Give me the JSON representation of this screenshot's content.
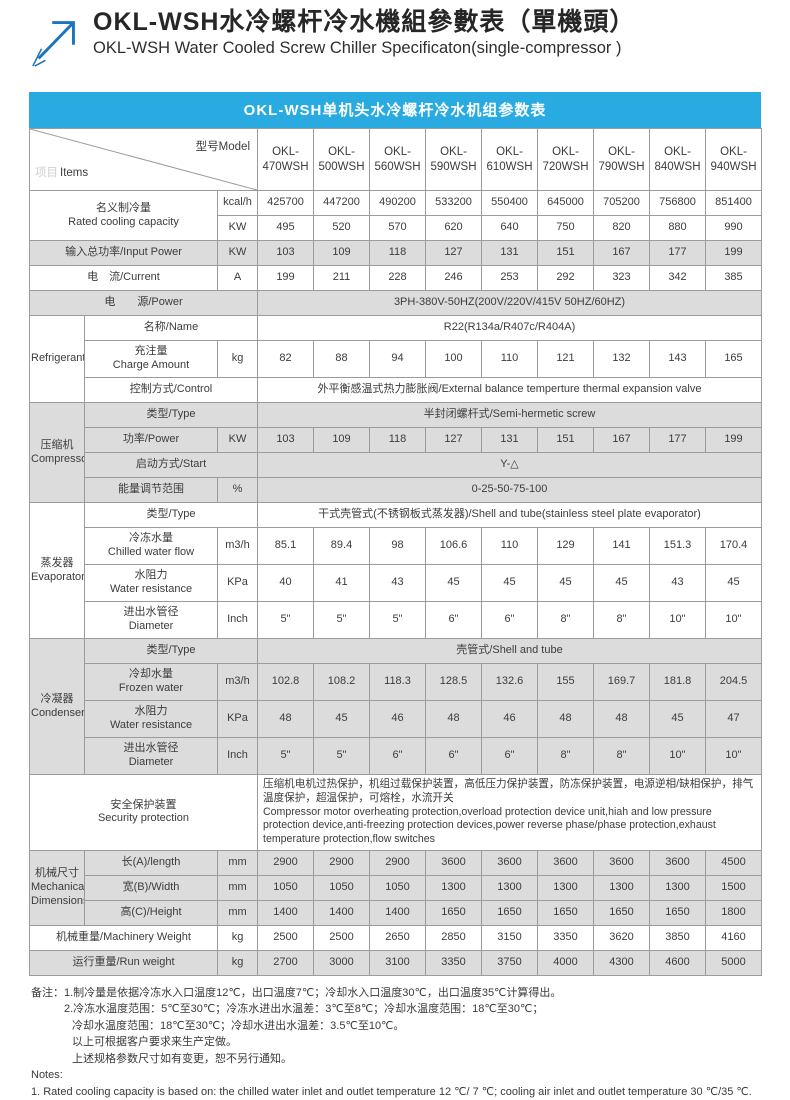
{
  "header": {
    "title_zh": "OKL-WSH水冷螺杆冷水機組參數表（單機頭）",
    "title_en": "OKL-WSH Water Cooled Screw Chiller Specificaton(single-compressor )",
    "accent_color": "#1c75bc"
  },
  "banner": {
    "text": "OKL-WSH单机头水冷螺杆冷水机组参数表",
    "bg_color": "#29abe2"
  },
  "colors": {
    "row_shade": "#dcdcdc",
    "border": "#9b9b9b"
  },
  "table": {
    "corner": {
      "items_zh": "项目",
      "items_en": "Items",
      "model_label": "型号Model"
    },
    "models": [
      "OKL-\n470WSH",
      "OKL-\n500WSH",
      "OKL-\n560WSH",
      "OKL-\n590WSH",
      "OKL-\n610WSH",
      "OKL-\n720WSH",
      "OKL-\n790WSH",
      "OKL-\n840WSH",
      "OKL-\n940WSH"
    ],
    "rows": [
      {
        "id": "cooling-kcal",
        "label": "名义制冷量\nRated cooling capacity",
        "labelCols": 2,
        "labelRows": 2,
        "unit": "kcal/h",
        "values": [
          "425700",
          "447200",
          "490200",
          "533200",
          "550400",
          "645000",
          "705200",
          "756800",
          "851400"
        ],
        "shade": false
      },
      {
        "id": "cooling-kw",
        "labelSkip": true,
        "unit": "KW",
        "values": [
          "495",
          "520",
          "570",
          "620",
          "640",
          "750",
          "820",
          "880",
          "990"
        ],
        "shade": false
      },
      {
        "id": "input-power",
        "label": "输入总功率/Input Power",
        "labelCols": 2,
        "unit": "KW",
        "values": [
          "103",
          "109",
          "118",
          "127",
          "131",
          "151",
          "167",
          "177",
          "199"
        ],
        "shade": true
      },
      {
        "id": "current",
        "label": "电　流/Current",
        "labelCols": 2,
        "unit": "A",
        "values": [
          "199",
          "211",
          "228",
          "246",
          "253",
          "292",
          "323",
          "342",
          "385"
        ],
        "shade": false
      },
      {
        "id": "power-source",
        "label": "电　　源/Power",
        "labelCols": 3,
        "merged": "3PH-380V-50HZ(200V/220V/415V 50HZ/60HZ)",
        "shade": true
      },
      {
        "id": "refrigerant-name",
        "group": "Refrigerant",
        "groupRows": 3,
        "label": "名称/Name",
        "labelCols": 2,
        "merged": "R22(R134a/R407c/R404A)",
        "shade": false
      },
      {
        "id": "refrigerant-charge",
        "label": "充注量\nCharge Amount",
        "unit": "kg",
        "values": [
          "82",
          "88",
          "94",
          "100",
          "110",
          "121",
          "132",
          "143",
          "165"
        ],
        "shade": false,
        "tall": true
      },
      {
        "id": "refrigerant-control",
        "label": "控制方式/Control",
        "labelCols": 2,
        "merged": "外平衡感温式热力膨胀阀/External balance temperture thermal expansion valve",
        "shade": false
      },
      {
        "id": "compressor-type",
        "group": "压缩机\nCompressor",
        "groupRows": 4,
        "label": "类型/Type",
        "labelCols": 2,
        "merged": "半封闭螺杆式/Semi-hermetic screw",
        "shade": true
      },
      {
        "id": "compressor-power",
        "label": "功率/Power",
        "unit": "KW",
        "values": [
          "103",
          "109",
          "118",
          "127",
          "131",
          "151",
          "167",
          "177",
          "199"
        ],
        "shade": true
      },
      {
        "id": "compressor-start",
        "label": "启动方式/Start",
        "labelCols": 2,
        "merged": "Y-△",
        "shade": true
      },
      {
        "id": "compressor-range",
        "label": "能量调节范围",
        "unit": "%",
        "merged": "0-25-50-75-100",
        "shade": true
      },
      {
        "id": "evaporator-type",
        "group": "蒸发器\nEvaporator",
        "groupRows": 4,
        "label": "类型/Type",
        "labelCols": 2,
        "merged": "干式壳管式(不锈钢板式蒸发器)/Shell and tube(stainless steel plate evaporator)",
        "shade": false
      },
      {
        "id": "evaporator-flow",
        "label": "冷冻水量\nChilled water flow",
        "unit": "m3/h",
        "values": [
          "85.1",
          "89.4",
          "98",
          "106.6",
          "110",
          "129",
          "141",
          "151.3",
          "170.4"
        ],
        "shade": false,
        "tall": true
      },
      {
        "id": "evaporator-resistance",
        "label": "水阻力\nWater resistance",
        "unit": "KPa",
        "values": [
          "40",
          "41",
          "43",
          "45",
          "45",
          "45",
          "45",
          "43",
          "45"
        ],
        "shade": false,
        "tall": true
      },
      {
        "id": "evaporator-diameter",
        "label": "进出水管径\nDiameter",
        "unit": "Inch",
        "values": [
          "5\"",
          "5\"",
          "5\"",
          "6\"",
          "6\"",
          "8\"",
          "8\"",
          "10\"",
          "10\""
        ],
        "shade": false,
        "tall": true
      },
      {
        "id": "condenser-type",
        "group": "冷凝器\nCondenser",
        "groupRows": 4,
        "label": "类型/Type",
        "labelCols": 2,
        "merged": "壳管式/Shell and tube",
        "shade": true
      },
      {
        "id": "condenser-flow",
        "label": "冷却水量\nFrozen water",
        "unit": "m3/h",
        "values": [
          "102.8",
          "108.2",
          "118.3",
          "128.5",
          "132.6",
          "155",
          "169.7",
          "181.8",
          "204.5"
        ],
        "shade": true,
        "tall": true
      },
      {
        "id": "condenser-resistance",
        "label": "水阻力\nWater resistance",
        "unit": "KPa",
        "values": [
          "48",
          "45",
          "46",
          "48",
          "46",
          "48",
          "48",
          "45",
          "47"
        ],
        "shade": true,
        "tall": true
      },
      {
        "id": "condenser-diameter",
        "label": "进出水管径\nDiameter",
        "unit": "Inch",
        "values": [
          "5\"",
          "5\"",
          "6\"",
          "6\"",
          "6\"",
          "8\"",
          "8\"",
          "10\"",
          "10\""
        ],
        "shade": true,
        "tall": true
      },
      {
        "id": "security-protection",
        "label": "安全保护装置\nSecurity protection",
        "labelCols": 3,
        "merged": "压缩机电机过热保护，机组过载保护装置，高低压力保护装置，防冻保护装置，电源逆相/缺相保护，排气温度保护，超温保护，可熔栓，水流开关\nCompressor motor overheating protection,overload protection device unit,hiah and low pressure protection device,anti-freezing protection devices,power reverse phase/phase protection,exhaust temperature protection,flow switches",
        "mergedAlign": "left",
        "shade": false
      },
      {
        "id": "dimension-length",
        "group": "机械尺寸\nMechanical\nDimensions",
        "groupRows": 3,
        "label": "长(A)/length",
        "unit": "mm",
        "values": [
          "2900",
          "2900",
          "2900",
          "3600",
          "3600",
          "3600",
          "3600",
          "3600",
          "4500"
        ],
        "shade": true
      },
      {
        "id": "dimension-width",
        "label": "宽(B)/Width",
        "unit": "mm",
        "values": [
          "1050",
          "1050",
          "1050",
          "1300",
          "1300",
          "1300",
          "1300",
          "1300",
          "1500"
        ],
        "shade": true
      },
      {
        "id": "dimension-height",
        "label": "高(C)/Height",
        "unit": "mm",
        "values": [
          "1400",
          "1400",
          "1400",
          "1650",
          "1650",
          "1650",
          "1650",
          "1650",
          "1800"
        ],
        "shade": true
      },
      {
        "id": "machinery-weight",
        "label": "机械重量/Machinery Weight",
        "labelCols": 2,
        "unit": "kg",
        "values": [
          "2500",
          "2500",
          "2650",
          "2850",
          "3150",
          "3350",
          "3620",
          "3850",
          "4160"
        ],
        "shade": false
      },
      {
        "id": "run-weight",
        "label": "运行重量/Run weight",
        "labelCols": 2,
        "unit": "kg",
        "values": [
          "2700",
          "3000",
          "3100",
          "3350",
          "3750",
          "4000",
          "4300",
          "4600",
          "5000"
        ],
        "shade": true
      }
    ]
  },
  "notes": {
    "lines": [
      {
        "text": "备注：1.制冷量是依据冷冻水入口温度12℃，出口温度7℃；冷却水入口温度30℃，出口温度35℃计算得出。",
        "indent": 0
      },
      {
        "text": "2.冷冻水温度范围：5℃至30℃；冷冻水进出水温差：3℃至8℃；冷却水温度范围：18℃至30℃；",
        "indent": 1
      },
      {
        "text": "冷却水温度范围：18℃至30℃；冷却水进出水温差：3.5℃至10℃。",
        "indent": 2
      },
      {
        "text": "以上可根据客户要求来生产定做。",
        "indent": 2
      },
      {
        "text": "上述规格参数尺寸如有变更，恕不另行通知。",
        "indent": 2
      },
      {
        "text": "Notes:",
        "indent": 0
      },
      {
        "text": "1. Rated cooling capacity is based on: the chilled water inlet and outlet temperature 12 ℃/ 7 ℃; cooling air inlet and outlet temperature 30 ℃/35 ℃.",
        "indent": 0
      }
    ]
  }
}
